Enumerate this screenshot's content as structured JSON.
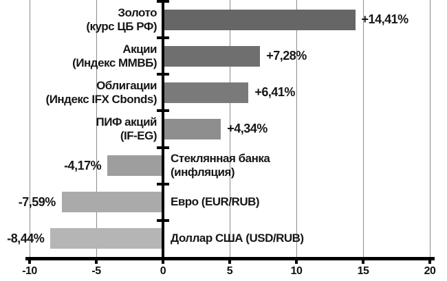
{
  "chart_data": {
    "type": "bar",
    "orientation": "horizontal",
    "title": "",
    "xlabel": "",
    "ylabel": "",
    "categories": [
      "Золото (курс ЦБ РФ)",
      "Акции (Индекс ММВБ)",
      "Облигации (Индекс IFX Cbonds)",
      "ПИФ акций (IF-EG)",
      "Стеклянная банка (инфляция)",
      "Евро (EUR/RUB)",
      "Доллар США (USD/RUB)"
    ],
    "category_lines": [
      [
        "Золото",
        "(курс ЦБ РФ)"
      ],
      [
        "Акции",
        "(Индекс ММВБ)"
      ],
      [
        "Облигации",
        "(Индекс IFX Cbonds)"
      ],
      [
        "ПИФ акций",
        "(IF-EG)"
      ],
      [
        "Стеклянная банка",
        "(инфляция)"
      ],
      [
        "Евро (EUR/RUB)"
      ],
      [
        "Доллар США (USD/RUB)"
      ]
    ],
    "values": [
      14.41,
      7.28,
      6.41,
      4.34,
      -4.17,
      -7.59,
      -8.44
    ],
    "value_labels": [
      "+14,41%",
      "+7,28%",
      "+6,41%",
      "+4,34%",
      "-4,17%",
      "-7,59%",
      "-8,44%"
    ],
    "bar_colors": [
      "#666666",
      "#6f6f6f",
      "#7a7a7a",
      "#8e8e8e",
      "#9e9e9e",
      "#aaaaaa",
      "#b5b5b5"
    ],
    "xlim": [
      -10,
      20
    ],
    "x_ticks": [
      -10,
      -5,
      0,
      5,
      10,
      15,
      20
    ],
    "x_tick_labels": [
      "-10",
      "-5",
      "0",
      "5",
      "10",
      "15",
      "20"
    ],
    "grid": true,
    "legend": "none",
    "background_color": "#ffffff",
    "axis_color": "#000000",
    "gridline_color": "#8a8a8a",
    "text_color": "#161616"
  }
}
